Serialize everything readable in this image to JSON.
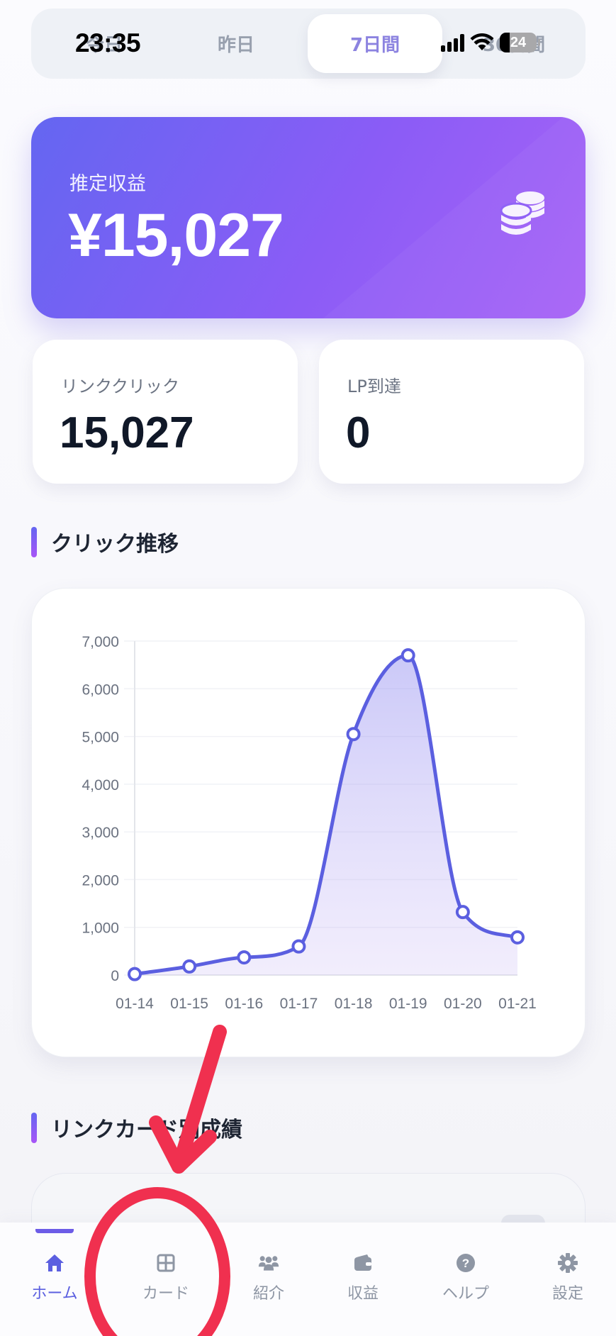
{
  "status_bar": {
    "time": "23:35",
    "battery": "24"
  },
  "period_tabs": {
    "items": [
      {
        "label": "今日",
        "active": false
      },
      {
        "label": "昨日",
        "active": false
      },
      {
        "label": "7日間",
        "active": true
      },
      {
        "label": "30日間",
        "active": false
      }
    ]
  },
  "revenue_card": {
    "label": "推定収益",
    "value": "¥15,027",
    "icon": "coins-icon"
  },
  "stats": [
    {
      "label": "リンククリック",
      "value": "15,027"
    },
    {
      "label": "LP到達",
      "value": "0"
    }
  ],
  "sections": {
    "click_trend_title": "クリック推移",
    "link_card_title": "リンクカード別成績"
  },
  "colors": {
    "accent": "#5b5fe0",
    "gradient_start": "#6466f1",
    "gradient_end": "#a855f7",
    "line": "#5b5fe0",
    "annotation": "#f0304f"
  },
  "chart_data": {
    "type": "line",
    "title": "クリック推移",
    "xlabel": "",
    "ylabel": "",
    "categories": [
      "01-14",
      "01-15",
      "01-16",
      "01-17",
      "01-18",
      "01-19",
      "01-20",
      "01-21"
    ],
    "series": [
      {
        "name": "クリック",
        "values": [
          20,
          180,
          370,
          600,
          5050,
          6700,
          1320,
          790
        ]
      }
    ],
    "yticks": [
      0,
      1000,
      2000,
      3000,
      4000,
      5000,
      6000,
      7000
    ],
    "ytick_labels": [
      "0",
      "1,000",
      "2,000",
      "3,000",
      "4,000",
      "5,000",
      "6,000",
      "7,000"
    ],
    "ylim": [
      0,
      7000
    ],
    "grid": true,
    "smooth": true,
    "area_fill": true,
    "legend": "none"
  },
  "bottom_nav": {
    "items": [
      {
        "label": "ホーム",
        "icon": "home-icon",
        "active": true
      },
      {
        "label": "カード",
        "icon": "grid-icon",
        "active": false
      },
      {
        "label": "紹介",
        "icon": "users-icon",
        "active": false
      },
      {
        "label": "収益",
        "icon": "wallet-icon",
        "active": false
      },
      {
        "label": "ヘルプ",
        "icon": "help-icon",
        "active": false
      },
      {
        "label": "設定",
        "icon": "gear-icon",
        "active": false
      }
    ]
  }
}
